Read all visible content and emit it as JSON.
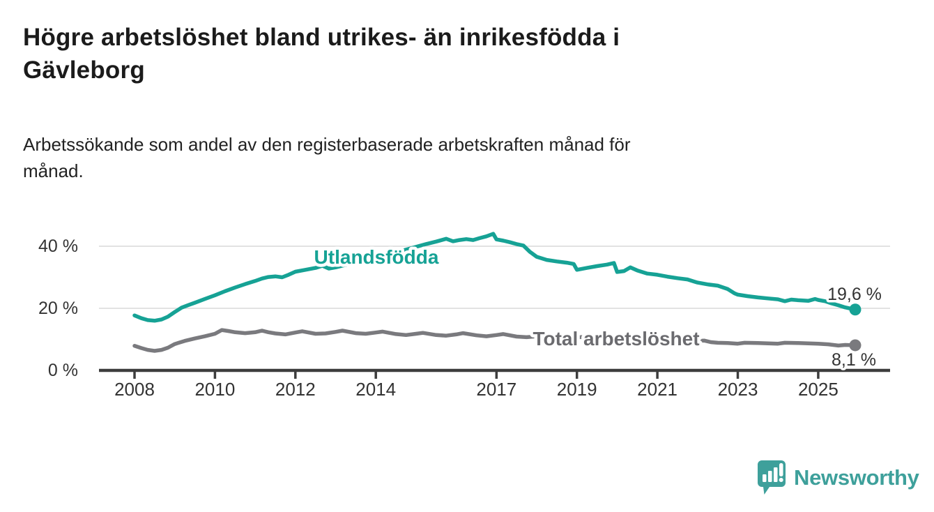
{
  "header": {
    "title_lines": [
      "Högre arbetslöshet bland utrikes- än inrikesfödda i",
      "Gävleborg"
    ],
    "subtitle_lines": [
      "Arbetssökande som andel av den registerbaserade arbetskraften månad för",
      "månad."
    ]
  },
  "chart_data": {
    "type": "line",
    "title": "Högre arbetslöshet bland utrikes- än inrikesfödda i Gävleborg",
    "subtitle": "Arbetssökande som andel av den registerbaserade arbetskraften månad för månad.",
    "x_axis": {
      "ticks": [
        2008,
        2010,
        2012,
        2014,
        2017,
        2019,
        2021,
        2023,
        2025
      ],
      "tick_labels": [
        "2008",
        "2010",
        "2012",
        "2014",
        "2017",
        "2019",
        "2021",
        "2023",
        "2025"
      ],
      "range": [
        2007.15,
        2026.8
      ]
    },
    "y_axis": {
      "ticks": [
        0,
        20,
        40
      ],
      "tick_labels": [
        "0 %",
        "20 %",
        "40 %"
      ],
      "range": [
        0,
        45.2
      ],
      "unit": "%"
    },
    "grid": "horizontal",
    "legend_position": "inline-labels",
    "series": [
      {
        "name": "Utlandsfödda",
        "color": "#16a295",
        "end_value": 19.6,
        "end_label": "19,6 %",
        "points": [
          [
            2008.0,
            17.7
          ],
          [
            2008.17,
            16.8
          ],
          [
            2008.33,
            16.2
          ],
          [
            2008.5,
            16.0
          ],
          [
            2008.67,
            16.4
          ],
          [
            2008.83,
            17.3
          ],
          [
            2009.0,
            18.8
          ],
          [
            2009.17,
            20.2
          ],
          [
            2009.33,
            21.0
          ],
          [
            2009.5,
            21.8
          ],
          [
            2009.75,
            23.0
          ],
          [
            2010.0,
            24.2
          ],
          [
            2010.25,
            25.5
          ],
          [
            2010.5,
            26.7
          ],
          [
            2010.75,
            27.8
          ],
          [
            2011.0,
            28.8
          ],
          [
            2011.17,
            29.6
          ],
          [
            2011.33,
            30.1
          ],
          [
            2011.5,
            30.3
          ],
          [
            2011.67,
            30.0
          ],
          [
            2011.83,
            30.8
          ],
          [
            2012.0,
            31.8
          ],
          [
            2012.25,
            32.4
          ],
          [
            2012.5,
            33.0
          ],
          [
            2012.67,
            33.7
          ],
          [
            2012.83,
            32.8
          ],
          [
            2013.0,
            33.2
          ],
          [
            2013.25,
            34.0
          ],
          [
            2013.5,
            34.8
          ],
          [
            2013.75,
            35.6
          ],
          [
            2014.0,
            36.4
          ],
          [
            2014.25,
            37.2
          ],
          [
            2014.5,
            38.0
          ],
          [
            2014.75,
            38.9
          ],
          [
            2015.0,
            39.8
          ],
          [
            2015.25,
            40.7
          ],
          [
            2015.5,
            41.5
          ],
          [
            2015.75,
            42.4
          ],
          [
            2015.92,
            41.6
          ],
          [
            2016.08,
            42.0
          ],
          [
            2016.25,
            42.3
          ],
          [
            2016.42,
            42.0
          ],
          [
            2016.58,
            42.6
          ],
          [
            2016.75,
            43.2
          ],
          [
            2016.92,
            44.0
          ],
          [
            2017.0,
            42.2
          ],
          [
            2017.17,
            41.8
          ],
          [
            2017.33,
            41.3
          ],
          [
            2017.5,
            40.7
          ],
          [
            2017.67,
            40.2
          ],
          [
            2017.83,
            38.2
          ],
          [
            2018.0,
            36.6
          ],
          [
            2018.25,
            35.6
          ],
          [
            2018.5,
            35.1
          ],
          [
            2018.75,
            34.7
          ],
          [
            2018.92,
            34.3
          ],
          [
            2019.0,
            32.4
          ],
          [
            2019.25,
            33.0
          ],
          [
            2019.5,
            33.6
          ],
          [
            2019.75,
            34.1
          ],
          [
            2019.92,
            34.6
          ],
          [
            2020.0,
            31.7
          ],
          [
            2020.17,
            32.0
          ],
          [
            2020.33,
            33.2
          ],
          [
            2020.5,
            32.2
          ],
          [
            2020.75,
            31.2
          ],
          [
            2021.0,
            30.8
          ],
          [
            2021.25,
            30.2
          ],
          [
            2021.5,
            29.7
          ],
          [
            2021.75,
            29.3
          ],
          [
            2021.92,
            28.6
          ],
          [
            2022.0,
            28.3
          ],
          [
            2022.25,
            27.7
          ],
          [
            2022.5,
            27.3
          ],
          [
            2022.75,
            26.2
          ],
          [
            2022.92,
            24.8
          ],
          [
            2023.0,
            24.4
          ],
          [
            2023.25,
            23.9
          ],
          [
            2023.5,
            23.5
          ],
          [
            2023.75,
            23.2
          ],
          [
            2024.0,
            22.9
          ],
          [
            2024.17,
            22.3
          ],
          [
            2024.33,
            22.8
          ],
          [
            2024.5,
            22.6
          ],
          [
            2024.75,
            22.4
          ],
          [
            2024.92,
            23.0
          ],
          [
            2025.0,
            22.7
          ],
          [
            2025.17,
            22.3
          ],
          [
            2025.33,
            21.6
          ],
          [
            2025.5,
            21.0
          ],
          [
            2025.67,
            20.3
          ],
          [
            2025.92,
            19.6
          ]
        ]
      },
      {
        "name": "Total arbetslöshet",
        "color": "#7a7a7e",
        "end_value": 8.1,
        "end_label": "8,1 %",
        "points": [
          [
            2008.0,
            7.9
          ],
          [
            2008.17,
            7.2
          ],
          [
            2008.33,
            6.6
          ],
          [
            2008.5,
            6.3
          ],
          [
            2008.67,
            6.6
          ],
          [
            2008.83,
            7.3
          ],
          [
            2009.0,
            8.5
          ],
          [
            2009.25,
            9.5
          ],
          [
            2009.5,
            10.3
          ],
          [
            2009.75,
            11.0
          ],
          [
            2010.0,
            11.8
          ],
          [
            2010.17,
            13.0
          ],
          [
            2010.33,
            12.7
          ],
          [
            2010.5,
            12.3
          ],
          [
            2010.75,
            12.0
          ],
          [
            2011.0,
            12.3
          ],
          [
            2011.17,
            12.8
          ],
          [
            2011.33,
            12.3
          ],
          [
            2011.5,
            11.9
          ],
          [
            2011.75,
            11.6
          ],
          [
            2012.0,
            12.2
          ],
          [
            2012.17,
            12.6
          ],
          [
            2012.5,
            11.8
          ],
          [
            2012.75,
            11.9
          ],
          [
            2013.0,
            12.4
          ],
          [
            2013.17,
            12.8
          ],
          [
            2013.5,
            12.0
          ],
          [
            2013.75,
            11.8
          ],
          [
            2014.0,
            12.2
          ],
          [
            2014.17,
            12.5
          ],
          [
            2014.5,
            11.7
          ],
          [
            2014.75,
            11.4
          ],
          [
            2015.0,
            11.8
          ],
          [
            2015.17,
            12.1
          ],
          [
            2015.5,
            11.4
          ],
          [
            2015.75,
            11.2
          ],
          [
            2016.0,
            11.6
          ],
          [
            2016.17,
            12.0
          ],
          [
            2016.5,
            11.3
          ],
          [
            2016.75,
            11.0
          ],
          [
            2017.0,
            11.4
          ],
          [
            2017.17,
            11.7
          ],
          [
            2017.5,
            10.9
          ],
          [
            2017.75,
            10.7
          ],
          [
            2018.0,
            11.0
          ],
          [
            2018.17,
            11.2
          ],
          [
            2018.5,
            10.5
          ],
          [
            2018.75,
            10.3
          ],
          [
            2019.0,
            10.6
          ],
          [
            2019.17,
            10.8
          ],
          [
            2019.5,
            10.1
          ],
          [
            2019.75,
            10.0
          ],
          [
            2020.0,
            10.4
          ],
          [
            2020.33,
            11.0
          ],
          [
            2020.5,
            10.7
          ],
          [
            2020.75,
            10.3
          ],
          [
            2021.0,
            10.2
          ],
          [
            2021.17,
            10.4
          ],
          [
            2021.5,
            9.7
          ],
          [
            2021.75,
            9.4
          ],
          [
            2022.0,
            9.5
          ],
          [
            2022.17,
            9.6
          ],
          [
            2022.33,
            9.1
          ],
          [
            2022.5,
            8.9
          ],
          [
            2022.75,
            8.8
          ],
          [
            2023.0,
            8.6
          ],
          [
            2023.17,
            8.9
          ],
          [
            2023.5,
            8.8
          ],
          [
            2023.75,
            8.7
          ],
          [
            2024.0,
            8.6
          ],
          [
            2024.17,
            8.9
          ],
          [
            2024.5,
            8.8
          ],
          [
            2024.75,
            8.7
          ],
          [
            2025.0,
            8.6
          ],
          [
            2025.25,
            8.4
          ],
          [
            2025.5,
            8.0
          ],
          [
            2025.67,
            8.2
          ],
          [
            2025.92,
            8.1
          ]
        ]
      }
    ]
  },
  "colors": {
    "teal_line": "#16a295",
    "gray_line": "#7a7a7e",
    "gray_label": "#6b6b6f",
    "value_label": "#333333",
    "axis": "#3d3d3d",
    "axis_text": "#333333",
    "gridline": "#d9d9d9",
    "logo": "#3ea09b"
  },
  "footer": {
    "logo_text": "Newsworthy"
  }
}
